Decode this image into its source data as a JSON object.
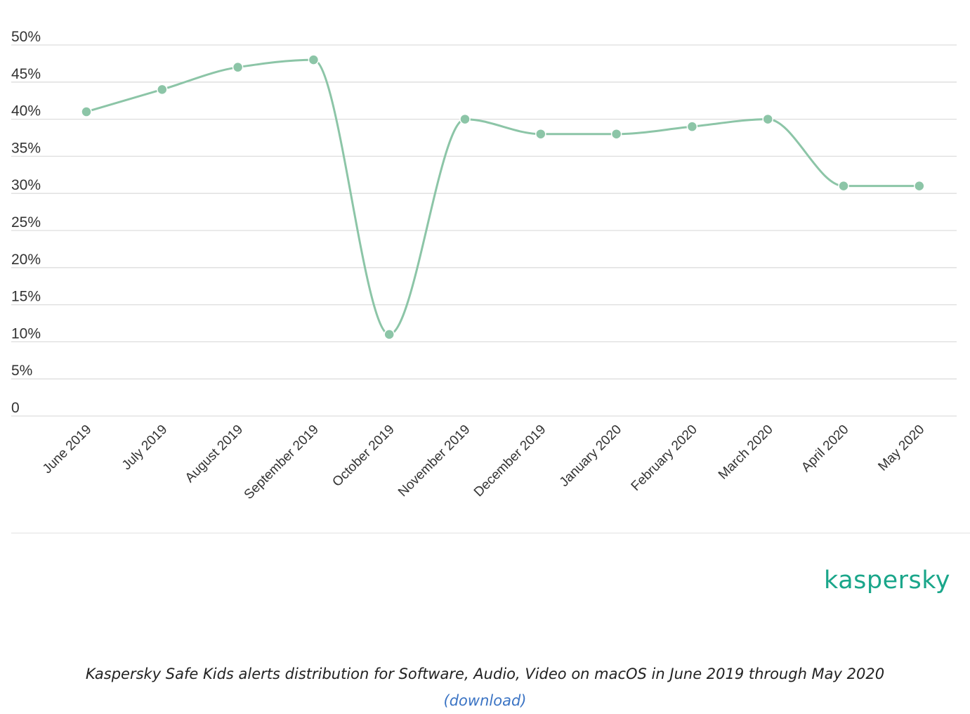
{
  "chart_data": {
    "type": "line",
    "categories": [
      "June 2019",
      "July 2019",
      "August 2019",
      "September 2019",
      "October 2019",
      "November 2019",
      "December 2019",
      "January 2020",
      "February 2020",
      "March 2020",
      "April 2020",
      "May 2020"
    ],
    "series": [
      {
        "values": [
          41,
          44,
          47,
          48,
          11,
          40,
          38,
          38,
          39,
          40,
          31,
          31
        ]
      }
    ],
    "y_ticks": [
      "0",
      "5%",
      "10%",
      "15%",
      "20%",
      "25%",
      "30%",
      "35%",
      "40%",
      "45%",
      "50%"
    ],
    "ylim": [
      0,
      50
    ],
    "grid": true,
    "smooth": true,
    "line_color": "#8cc5a7"
  },
  "logo": {
    "text": "kaspersky",
    "color": "#1aa68a"
  },
  "caption": {
    "text": "Kaspersky Safe Kids alerts distribution for Software, Audio, Video on macOS in June 2019 through May 2020",
    "link": "(download)"
  }
}
